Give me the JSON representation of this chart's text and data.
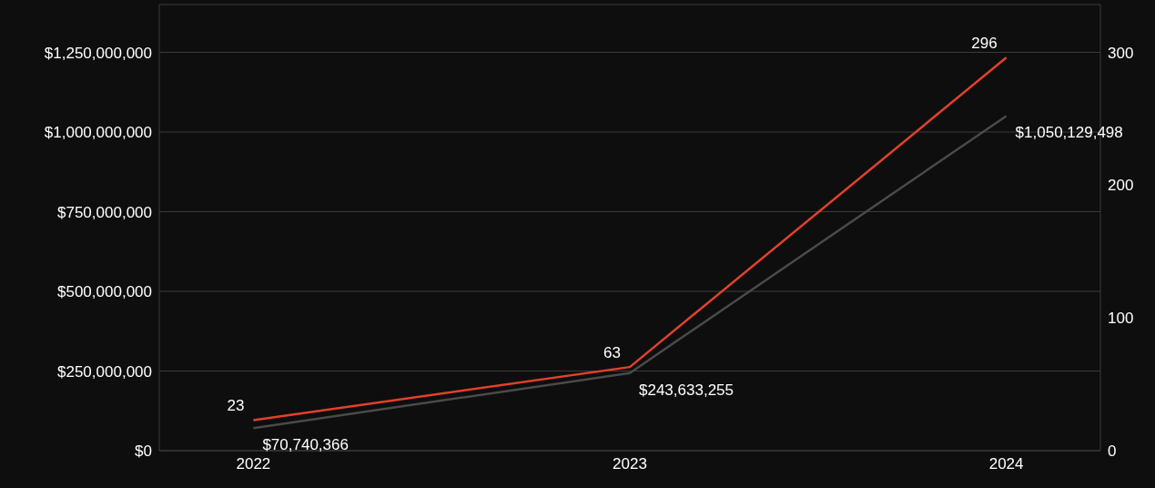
{
  "chart_data": {
    "type": "line",
    "categories": [
      "2022",
      "2023",
      "2024"
    ],
    "series": [
      {
        "color": "#4a4a4a",
        "values": [
          70740366,
          243633255,
          1050129498
        ],
        "value_labels": [
          "$70,740,366",
          "$243,633,255",
          "$1,050,129,498"
        ]
      },
      {
        "color": "#e2412c",
        "axis": "y2",
        "values": [
          23,
          63,
          296
        ],
        "value_labels": [
          "23",
          "63",
          "296"
        ]
      }
    ],
    "ylim": [
      0,
      1400000000
    ],
    "yticks": [
      {
        "value": 0,
        "label": "$0"
      },
      {
        "value": 250000000,
        "label": "$250,000,000"
      },
      {
        "value": 500000000,
        "label": "$500,000,000"
      },
      {
        "value": 750000000,
        "label": "$750,000,000"
      },
      {
        "value": 1000000000,
        "label": "$1,000,000,000"
      },
      {
        "value": 1250000000,
        "label": "$1,250,000,000"
      }
    ],
    "y2lim": [
      0,
      336
    ],
    "y2ticks": [
      0,
      100,
      200,
      300
    ],
    "grid": "y",
    "legend": false,
    "marker": "none",
    "line_style": "solid"
  }
}
